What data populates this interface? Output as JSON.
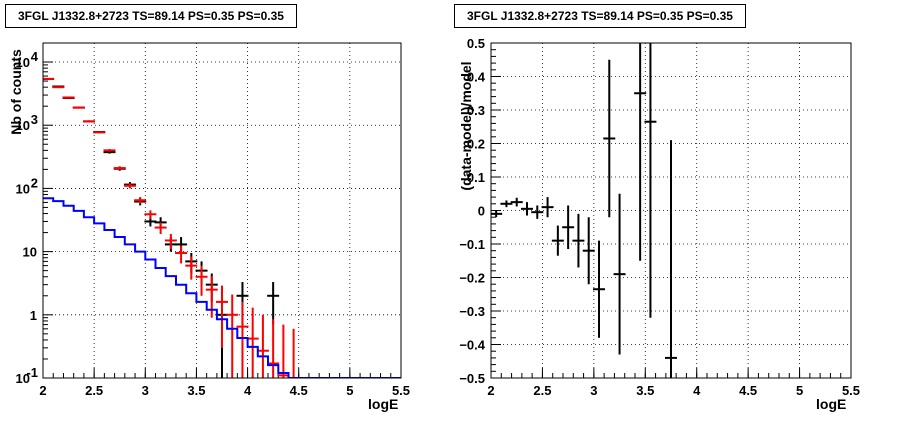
{
  "chart_data": [
    {
      "type": "scatter",
      "title": "3FGL J1332.8+2723 TS=89.14 PS=0.35 PS=0.35",
      "xlabel": "logE",
      "ylabel": "Nb of counts",
      "xlim": [
        2,
        5.5
      ],
      "ylim": [
        0.1,
        20000
      ],
      "yscale": "log",
      "grid": true,
      "x_ticks": [
        "2",
        "2.5",
        "3",
        "3.5",
        "4",
        "4.5",
        "5",
        "5.5"
      ],
      "y_ticks": [
        {
          "value": 0.1,
          "label": "10",
          "exp": "-1"
        },
        {
          "value": 1,
          "label": "1",
          "exp": ""
        },
        {
          "value": 10,
          "label": "10",
          "exp": ""
        },
        {
          "value": 100,
          "label": "10",
          "exp": "2"
        },
        {
          "value": 1000,
          "label": "10",
          "exp": "3"
        },
        {
          "value": 10000,
          "label": "10",
          "exp": "4"
        }
      ],
      "series": [
        {
          "color": "#000000",
          "points": [
            {
              "x": 2.05,
              "y": 5400,
              "ylo": 5300,
              "yhi": 5500
            },
            {
              "x": 2.15,
              "y": 4100,
              "ylo": 4000,
              "yhi": 4200
            },
            {
              "x": 2.25,
              "y": 2700,
              "ylo": 2650,
              "yhi": 2750
            },
            {
              "x": 2.35,
              "y": 1900,
              "ylo": 1850,
              "yhi": 1950
            },
            {
              "x": 2.45,
              "y": 1150,
              "ylo": 1110,
              "yhi": 1190
            },
            {
              "x": 2.55,
              "y": 780,
              "ylo": 750,
              "yhi": 810
            },
            {
              "x": 2.65,
              "y": 375,
              "ylo": 355,
              "yhi": 395
            },
            {
              "x": 2.75,
              "y": 205,
              "ylo": 190,
              "yhi": 220
            },
            {
              "x": 2.85,
              "y": 115,
              "ylo": 104,
              "yhi": 126
            },
            {
              "x": 2.95,
              "y": 62,
              "ylo": 54,
              "yhi": 70
            },
            {
              "x": 3.05,
              "y": 30,
              "ylo": 25,
              "yhi": 36
            },
            {
              "x": 3.15,
              "y": 29,
              "ylo": 24,
              "yhi": 35
            },
            {
              "x": 3.25,
              "y": 13,
              "ylo": 10,
              "yhi": 17
            },
            {
              "x": 3.35,
              "y": 13,
              "ylo": 10,
              "yhi": 17
            },
            {
              "x": 3.45,
              "y": 7,
              "ylo": 4.5,
              "yhi": 9.5
            },
            {
              "x": 3.55,
              "y": 5,
              "ylo": 3,
              "yhi": 7
            },
            {
              "x": 3.65,
              "y": 3,
              "ylo": 1.6,
              "yhi": 4.5
            },
            {
              "x": 3.75,
              "y": 1,
              "ylo": 0.1,
              "yhi": 2.3
            },
            {
              "x": 3.95,
              "y": 2,
              "ylo": 0.7,
              "yhi": 3.3
            },
            {
              "x": 4.25,
              "y": 2,
              "ylo": 0.7,
              "yhi": 3.3
            }
          ]
        },
        {
          "color": "#ff0000",
          "points": [
            {
              "x": 2.05,
              "y": 5400,
              "ylo": 5300,
              "yhi": 5500
            },
            {
              "x": 2.15,
              "y": 4000,
              "ylo": 3900,
              "yhi": 4100
            },
            {
              "x": 2.25,
              "y": 2750,
              "ylo": 2700,
              "yhi": 2800
            },
            {
              "x": 2.35,
              "y": 1900,
              "ylo": 1850,
              "yhi": 1950
            },
            {
              "x": 2.45,
              "y": 1150,
              "ylo": 1110,
              "yhi": 1190
            },
            {
              "x": 2.55,
              "y": 770,
              "ylo": 740,
              "yhi": 800
            },
            {
              "x": 2.65,
              "y": 400,
              "ylo": 380,
              "yhi": 420
            },
            {
              "x": 2.75,
              "y": 210,
              "ylo": 196,
              "yhi": 224
            },
            {
              "x": 2.85,
              "y": 110,
              "ylo": 100,
              "yhi": 120
            },
            {
              "x": 2.95,
              "y": 65,
              "ylo": 57,
              "yhi": 73
            },
            {
              "x": 3.05,
              "y": 39,
              "ylo": 33,
              "yhi": 45
            },
            {
              "x": 3.15,
              "y": 24,
              "ylo": 19,
              "yhi": 29
            },
            {
              "x": 3.25,
              "y": 15,
              "ylo": 11,
              "yhi": 19
            },
            {
              "x": 3.35,
              "y": 9.5,
              "ylo": 6.5,
              "yhi": 12.5
            },
            {
              "x": 3.45,
              "y": 6,
              "ylo": 3.6,
              "yhi": 8.4
            },
            {
              "x": 3.55,
              "y": 4,
              "ylo": 2,
              "yhi": 6
            },
            {
              "x": 3.65,
              "y": 2.5,
              "ylo": 0.9,
              "yhi": 4.1
            },
            {
              "x": 3.75,
              "y": 1.6,
              "ylo": 0.3,
              "yhi": 2.9
            },
            {
              "x": 3.85,
              "y": 1,
              "ylo": 0.1,
              "yhi": 2.1
            },
            {
              "x": 3.95,
              "y": 0.65,
              "ylo": 0.1,
              "yhi": 1.6
            },
            {
              "x": 4.05,
              "y": 0.42,
              "ylo": 0.1,
              "yhi": 1.3
            },
            {
              "x": 4.15,
              "y": 0.27,
              "ylo": 0.1,
              "yhi": 1.0
            },
            {
              "x": 4.25,
              "y": 0.17,
              "ylo": 0.1,
              "yhi": 0.85
            },
            {
              "x": 4.35,
              "y": 0.11,
              "ylo": 0.1,
              "yhi": 0.7
            },
            {
              "x": 4.45,
              "y": 0.1,
              "ylo": 0.1,
              "yhi": 0.6
            }
          ]
        },
        {
          "color": "#0000ff",
          "step": true,
          "edges": [
            2,
            2.1,
            2.2,
            2.3,
            2.4,
            2.5,
            2.6,
            2.7,
            2.8,
            2.9,
            3.0,
            3.1,
            3.2,
            3.3,
            3.4,
            3.5,
            3.6,
            3.7,
            3.8,
            3.9,
            4.0,
            4.1,
            4.2,
            4.3,
            4.4,
            4.5,
            5.5
          ],
          "values": [
            70,
            63,
            53,
            44,
            35,
            28,
            22,
            17,
            13,
            10,
            7.5,
            5.5,
            4.1,
            3.0,
            2.2,
            1.6,
            1.2,
            0.85,
            0.6,
            0.43,
            0.31,
            0.22,
            0.16,
            0.12,
            0.1,
            0.1
          ]
        }
      ]
    },
    {
      "type": "scatter",
      "title": "3FGL J1332.8+2723 TS=89.14 PS=0.35 PS=0.35",
      "xlabel": "logE",
      "ylabel": "(data-model)/model",
      "xlim": [
        2,
        5.5
      ],
      "ylim": [
        -0.5,
        0.5
      ],
      "grid": true,
      "x_ticks": [
        "2",
        "2.5",
        "3",
        "3.5",
        "4",
        "4.5",
        "5",
        "5.5"
      ],
      "y_ticks": [
        "−0.5",
        "−0.4",
        "−0.3",
        "−0.2",
        "−0.1",
        "0",
        "0.1",
        "0.2",
        "0.3",
        "0.4",
        "0.5"
      ],
      "series": [
        {
          "color": "#000000",
          "points": [
            {
              "x": 2.05,
              "y": -0.01,
              "ylo": -0.02,
              "yhi": 0.0
            },
            {
              "x": 2.15,
              "y": 0.02,
              "ylo": 0.01,
              "yhi": 0.03
            },
            {
              "x": 2.25,
              "y": 0.025,
              "ylo": 0.012,
              "yhi": 0.038
            },
            {
              "x": 2.35,
              "y": 0.005,
              "ylo": -0.015,
              "yhi": 0.025
            },
            {
              "x": 2.45,
              "y": -0.005,
              "ylo": -0.025,
              "yhi": 0.015
            },
            {
              "x": 2.55,
              "y": 0.01,
              "ylo": -0.02,
              "yhi": 0.04
            },
            {
              "x": 2.65,
              "y": -0.09,
              "ylo": -0.135,
              "yhi": -0.045
            },
            {
              "x": 2.75,
              "y": -0.05,
              "ylo": -0.115,
              "yhi": 0.015
            },
            {
              "x": 2.85,
              "y": -0.09,
              "ylo": -0.17,
              "yhi": -0.01
            },
            {
              "x": 2.95,
              "y": -0.12,
              "ylo": -0.22,
              "yhi": -0.02
            },
            {
              "x": 3.05,
              "y": -0.235,
              "ylo": -0.38,
              "yhi": -0.09
            },
            {
              "x": 3.15,
              "y": 0.215,
              "ylo": -0.02,
              "yhi": 0.45
            },
            {
              "x": 3.25,
              "y": -0.19,
              "ylo": -0.43,
              "yhi": 0.05
            },
            {
              "x": 3.45,
              "y": 0.35,
              "ylo": -0.15,
              "yhi": 0.85
            },
            {
              "x": 3.55,
              "y": 0.265,
              "ylo": -0.32,
              "yhi": 0.85
            },
            {
              "x": 3.75,
              "y": -0.44,
              "ylo": -0.8,
              "yhi": 0.21
            }
          ]
        }
      ]
    }
  ]
}
